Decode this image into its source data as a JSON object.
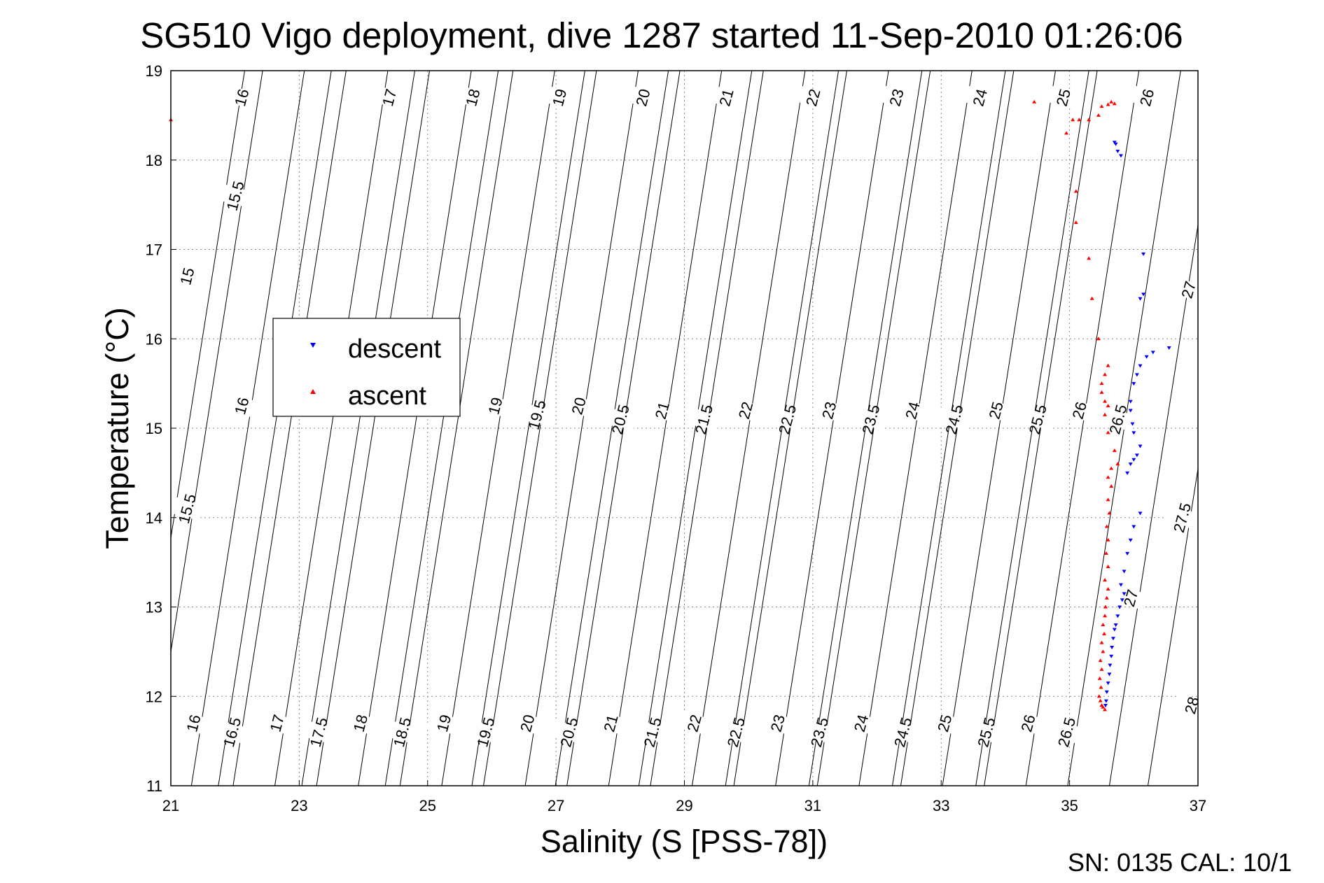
{
  "chart_data": {
    "type": "scatter",
    "title": "SG510 Vigo deployment, dive 1287 started 11-Sep-2010 01:26:06",
    "xlabel": "Salinity (S [PSS-78])",
    "ylabel": "Temperature (°C)",
    "xlim": [
      21,
      37
    ],
    "ylim": [
      11,
      19
    ],
    "xticks": [
      "21",
      "23",
      "25",
      "27",
      "29",
      "31",
      "33",
      "35",
      "37"
    ],
    "yticks": [
      "11",
      "12",
      "13",
      "14",
      "15",
      "16",
      "17",
      "18",
      "19"
    ],
    "grid": true,
    "legend_position": "left-center",
    "legend": [
      {
        "label": "descent",
        "color": "#0000ff",
        "marker": "triangle-down"
      },
      {
        "label": "ascent",
        "color": "#ff0000",
        "marker": "triangle-up"
      }
    ],
    "footer": "SN: 0135  CAL: 10/1",
    "contours": [
      {
        "y0": 19,
        "x0": 20.8,
        "dxdy": 0.22
      },
      {
        "y0": 19,
        "x0": 22.15,
        "dxdy": 0.22
      },
      {
        "y0": 19,
        "x0": 23.5,
        "dxdy": 0.22
      },
      {
        "y0": 19,
        "x0": 24.8,
        "dxdy": 0.22
      },
      {
        "y0": 19,
        "x0": 26.1,
        "dxdy": 0.22
      },
      {
        "y0": 19,
        "x0": 27.45,
        "dxdy": 0.22
      },
      {
        "y0": 19,
        "x0": 28.75,
        "dxdy": 0.22
      },
      {
        "y0": 19,
        "x0": 30.05,
        "dxdy": 0.22
      },
      {
        "y0": 19,
        "x0": 31.4,
        "dxdy": 0.22
      },
      {
        "y0": 19,
        "x0": 32.7,
        "dxdy": 0.22
      },
      {
        "y0": 19,
        "x0": 34.0,
        "dxdy": 0.22
      },
      {
        "y0": 19,
        "x0": 35.3,
        "dxdy": 0.22
      },
      {
        "y0": 15,
        "x0": 21.55,
        "dxdy": 0.22
      },
      {
        "y0": 15,
        "x0": 22.2,
        "dxdy": 0.22
      },
      {
        "y0": 15,
        "x0": 22.85,
        "dxdy": 0.22
      },
      {
        "y0": 15,
        "x0": 23.5,
        "dxdy": 0.22
      },
      {
        "y0": 15,
        "x0": 24.15,
        "dxdy": 0.22
      },
      {
        "y0": 15,
        "x0": 24.8,
        "dxdy": 0.22
      },
      {
        "y0": 15,
        "x0": 25.45,
        "dxdy": 0.22
      },
      {
        "y0": 15,
        "x0": 26.1,
        "dxdy": 0.22
      },
      {
        "y0": 15,
        "x0": 26.75,
        "dxdy": 0.22
      },
      {
        "y0": 15,
        "x0": 27.4,
        "dxdy": 0.22
      },
      {
        "y0": 15,
        "x0": 28.05,
        "dxdy": 0.22
      },
      {
        "y0": 15,
        "x0": 28.7,
        "dxdy": 0.22
      },
      {
        "y0": 15,
        "x0": 29.35,
        "dxdy": 0.22
      },
      {
        "y0": 15,
        "x0": 30.0,
        "dxdy": 0.22
      },
      {
        "y0": 15,
        "x0": 30.65,
        "dxdy": 0.22
      },
      {
        "y0": 15,
        "x0": 31.3,
        "dxdy": 0.22
      },
      {
        "y0": 15,
        "x0": 31.95,
        "dxdy": 0.22
      },
      {
        "y0": 15,
        "x0": 32.6,
        "dxdy": 0.22
      },
      {
        "y0": 15,
        "x0": 33.25,
        "dxdy": 0.22
      },
      {
        "y0": 15,
        "x0": 33.9,
        "dxdy": 0.22
      },
      {
        "y0": 15,
        "x0": 34.55,
        "dxdy": 0.22
      },
      {
        "y0": 15,
        "x0": 35.2,
        "dxdy": 0.22
      },
      {
        "y0": 15,
        "x0": 35.85,
        "dxdy": 0.22
      },
      {
        "y0": 15,
        "x0": 36.5,
        "dxdy": 0.22
      },
      {
        "y0": 15,
        "x0": 37.1,
        "dxdy": 0.22
      }
    ],
    "contour_labels": [
      {
        "text": "15",
        "x": 21.25,
        "y": 16.7
      },
      {
        "text": "15.5",
        "x": 22.0,
        "y": 17.6
      },
      {
        "text": "16",
        "x": 22.1,
        "y": 18.7
      },
      {
        "text": "17",
        "x": 24.4,
        "y": 18.7
      },
      {
        "text": "18",
        "x": 25.7,
        "y": 18.7
      },
      {
        "text": "19",
        "x": 27.05,
        "y": 18.7
      },
      {
        "text": "20",
        "x": 28.35,
        "y": 18.7
      },
      {
        "text": "21",
        "x": 29.65,
        "y": 18.7
      },
      {
        "text": "22",
        "x": 31.0,
        "y": 18.7
      },
      {
        "text": "23",
        "x": 32.3,
        "y": 18.7
      },
      {
        "text": "24",
        "x": 33.6,
        "y": 18.7
      },
      {
        "text": "25",
        "x": 34.9,
        "y": 18.7
      },
      {
        "text": "26",
        "x": 36.2,
        "y": 18.7
      },
      {
        "text": "27",
        "x": 36.85,
        "y": 16.55
      },
      {
        "text": "27.5",
        "x": 36.75,
        "y": 14.0
      },
      {
        "text": "28",
        "x": 36.9,
        "y": 11.9
      },
      {
        "text": "15.5",
        "x": 21.25,
        "y": 14.1
      },
      {
        "text": "16",
        "x": 22.1,
        "y": 15.25
      },
      {
        "text": "19",
        "x": 26.05,
        "y": 15.25
      },
      {
        "text": "19.5",
        "x": 26.7,
        "y": 15.15
      },
      {
        "text": "20",
        "x": 27.35,
        "y": 15.25
      },
      {
        "text": "20.5",
        "x": 28.0,
        "y": 15.1
      },
      {
        "text": "21",
        "x": 28.65,
        "y": 15.2
      },
      {
        "text": "21.5",
        "x": 29.3,
        "y": 15.1
      },
      {
        "text": "22",
        "x": 29.95,
        "y": 15.2
      },
      {
        "text": "22.5",
        "x": 30.6,
        "y": 15.1
      },
      {
        "text": "23",
        "x": 31.25,
        "y": 15.2
      },
      {
        "text": "23.5",
        "x": 31.9,
        "y": 15.1
      },
      {
        "text": "24",
        "x": 32.55,
        "y": 15.2
      },
      {
        "text": "24.5",
        "x": 33.2,
        "y": 15.1
      },
      {
        "text": "25",
        "x": 33.85,
        "y": 15.2
      },
      {
        "text": "25.5",
        "x": 34.5,
        "y": 15.1
      },
      {
        "text": "26",
        "x": 35.15,
        "y": 15.2
      },
      {
        "text": "26.5",
        "x": 35.75,
        "y": 15.1
      },
      {
        "text": "27",
        "x": 35.95,
        "y": 13.1
      },
      {
        "text": "16",
        "x": 21.35,
        "y": 11.7
      },
      {
        "text": "16.5",
        "x": 21.95,
        "y": 11.6
      },
      {
        "text": "17",
        "x": 22.65,
        "y": 11.7
      },
      {
        "text": "17.5",
        "x": 23.3,
        "y": 11.6
      },
      {
        "text": "18",
        "x": 23.95,
        "y": 11.7
      },
      {
        "text": "18.5",
        "x": 24.6,
        "y": 11.6
      },
      {
        "text": "19",
        "x": 25.25,
        "y": 11.7
      },
      {
        "text": "19.5",
        "x": 25.9,
        "y": 11.6
      },
      {
        "text": "20",
        "x": 26.55,
        "y": 11.7
      },
      {
        "text": "20.5",
        "x": 27.2,
        "y": 11.6
      },
      {
        "text": "21",
        "x": 27.85,
        "y": 11.7
      },
      {
        "text": "21.5",
        "x": 28.5,
        "y": 11.6
      },
      {
        "text": "22",
        "x": 29.15,
        "y": 11.7
      },
      {
        "text": "22.5",
        "x": 29.8,
        "y": 11.6
      },
      {
        "text": "23",
        "x": 30.45,
        "y": 11.7
      },
      {
        "text": "23.5",
        "x": 31.1,
        "y": 11.6
      },
      {
        "text": "24",
        "x": 31.75,
        "y": 11.7
      },
      {
        "text": "24.5",
        "x": 32.4,
        "y": 11.6
      },
      {
        "text": "25",
        "x": 33.05,
        "y": 11.7
      },
      {
        "text": "25.5",
        "x": 33.7,
        "y": 11.6
      },
      {
        "text": "26",
        "x": 34.35,
        "y": 11.7
      },
      {
        "text": "26.5",
        "x": 34.95,
        "y": 11.6
      }
    ],
    "series": [
      {
        "name": "descent",
        "color": "#0000ff",
        "marker": "triangle-down",
        "points": [
          [
            35.7,
            18.2
          ],
          [
            35.72,
            18.18
          ],
          [
            35.75,
            18.1
          ],
          [
            35.8,
            18.05
          ],
          [
            36.15,
            16.95
          ],
          [
            36.15,
            16.5
          ],
          [
            36.1,
            16.45
          ],
          [
            36.55,
            15.9
          ],
          [
            36.3,
            15.85
          ],
          [
            36.2,
            15.8
          ],
          [
            36.1,
            15.7
          ],
          [
            36.05,
            15.6
          ],
          [
            36.0,
            15.5
          ],
          [
            35.95,
            15.3
          ],
          [
            35.95,
            15.2
          ],
          [
            35.98,
            15.05
          ],
          [
            36.0,
            14.95
          ],
          [
            36.1,
            14.8
          ],
          [
            36.05,
            14.7
          ],
          [
            36.0,
            14.65
          ],
          [
            35.95,
            14.6
          ],
          [
            35.9,
            14.5
          ],
          [
            36.1,
            14.05
          ],
          [
            36.0,
            13.9
          ],
          [
            35.95,
            13.75
          ],
          [
            35.9,
            13.6
          ],
          [
            35.85,
            13.4
          ],
          [
            35.8,
            13.25
          ],
          [
            35.85,
            13.15
          ],
          [
            35.82,
            13.08
          ],
          [
            35.78,
            13.0
          ],
          [
            35.75,
            12.9
          ],
          [
            35.72,
            12.8
          ],
          [
            35.7,
            12.75
          ],
          [
            35.68,
            12.65
          ],
          [
            35.66,
            12.55
          ],
          [
            35.65,
            12.45
          ],
          [
            35.63,
            12.35
          ],
          [
            35.62,
            12.25
          ],
          [
            35.6,
            12.15
          ],
          [
            35.58,
            12.05
          ],
          [
            35.57,
            11.95
          ],
          [
            35.56,
            11.9
          ]
        ]
      },
      {
        "name": "ascent",
        "color": "#ff0000",
        "marker": "triangle-up",
        "points": [
          [
            21.0,
            18.45
          ],
          [
            34.45,
            18.65
          ],
          [
            34.95,
            18.3
          ],
          [
            35.05,
            18.45
          ],
          [
            35.15,
            18.45
          ],
          [
            35.3,
            18.45
          ],
          [
            35.45,
            18.5
          ],
          [
            35.5,
            18.6
          ],
          [
            35.6,
            18.62
          ],
          [
            35.65,
            18.65
          ],
          [
            35.7,
            18.63
          ],
          [
            35.1,
            17.65
          ],
          [
            35.1,
            17.3
          ],
          [
            35.3,
            16.9
          ],
          [
            35.35,
            16.45
          ],
          [
            35.45,
            16.0
          ],
          [
            35.6,
            15.7
          ],
          [
            35.55,
            15.6
          ],
          [
            35.5,
            15.5
          ],
          [
            35.5,
            15.4
          ],
          [
            35.55,
            15.3
          ],
          [
            35.6,
            15.25
          ],
          [
            35.55,
            15.15
          ],
          [
            35.6,
            14.95
          ],
          [
            35.7,
            14.75
          ],
          [
            35.75,
            14.6
          ],
          [
            35.65,
            14.55
          ],
          [
            35.6,
            14.45
          ],
          [
            35.65,
            14.35
          ],
          [
            35.6,
            14.2
          ],
          [
            35.62,
            14.05
          ],
          [
            35.58,
            13.9
          ],
          [
            35.6,
            13.75
          ],
          [
            35.57,
            13.6
          ],
          [
            35.6,
            13.45
          ],
          [
            35.55,
            13.3
          ],
          [
            35.6,
            13.2
          ],
          [
            35.58,
            13.1
          ],
          [
            35.56,
            13.0
          ],
          [
            35.55,
            12.9
          ],
          [
            35.52,
            12.8
          ],
          [
            35.54,
            12.7
          ],
          [
            35.5,
            12.6
          ],
          [
            35.52,
            12.5
          ],
          [
            35.48,
            12.4
          ],
          [
            35.5,
            12.3
          ],
          [
            35.47,
            12.2
          ],
          [
            35.49,
            12.1
          ],
          [
            35.46,
            12.0
          ],
          [
            35.48,
            11.95
          ],
          [
            35.5,
            11.9
          ],
          [
            35.52,
            11.88
          ],
          [
            35.55,
            11.85
          ]
        ]
      }
    ]
  }
}
